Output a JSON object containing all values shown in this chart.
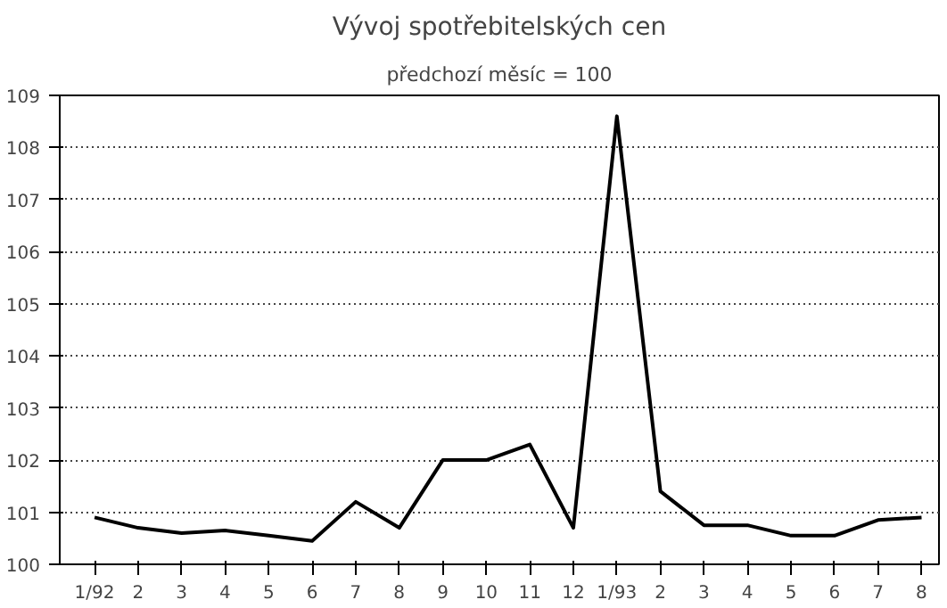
{
  "chart_data": {
    "type": "line",
    "title": "Vývoj spotřebitelských cen",
    "subtitle": "předchozí měsíc = 100",
    "categories": [
      "1/92",
      "2",
      "3",
      "4",
      "5",
      "6",
      "7",
      "8",
      "9",
      "10",
      "11",
      "12",
      "1/93",
      "2",
      "3",
      "4",
      "5",
      "6",
      "7",
      "8"
    ],
    "series": [
      {
        "color": "#000000",
        "values": [
          100.9,
          100.7,
          100.6,
          100.65,
          100.55,
          100.45,
          101.2,
          100.7,
          102.0,
          102.0,
          102.3,
          100.7,
          108.6,
          101.4,
          100.75,
          100.75,
          100.55,
          100.55,
          100.85,
          100.9
        ]
      }
    ],
    "ylim": [
      100,
      109
    ],
    "yticks": [
      100,
      101,
      102,
      103,
      104,
      105,
      106,
      107,
      108,
      109
    ],
    "grid": "y",
    "marker": "none",
    "line_style": "solid"
  }
}
